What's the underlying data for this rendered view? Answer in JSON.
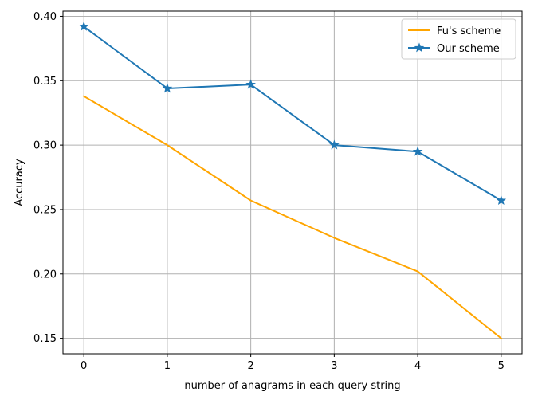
{
  "chart_data": {
    "type": "line",
    "xlabel": "number of anagrams in each query string",
    "ylabel": "Accuracy",
    "x": [
      0,
      1,
      2,
      3,
      4,
      5
    ],
    "xticks": [
      "0",
      "1",
      "2",
      "3",
      "4",
      "5"
    ],
    "yticks": [
      "0.15",
      "0.20",
      "0.25",
      "0.30",
      "0.35",
      "0.40"
    ],
    "xlim": [
      -0.25,
      5.25
    ],
    "ylim": [
      0.138,
      0.404
    ],
    "grid": true,
    "legend_position": "top-right",
    "series": [
      {
        "name": "Fu's scheme",
        "color": "#ffa500",
        "marker": "none",
        "values": [
          0.338,
          0.3,
          0.257,
          0.228,
          0.202,
          0.15
        ]
      },
      {
        "name": "Our scheme",
        "color": "#1f77b4",
        "marker": "star",
        "values": [
          0.392,
          0.344,
          0.347,
          0.3,
          0.295,
          0.257
        ]
      }
    ]
  }
}
